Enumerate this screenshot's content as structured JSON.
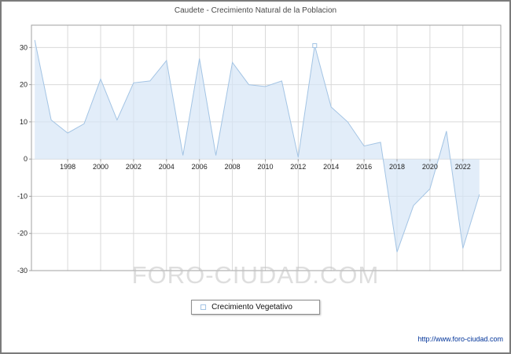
{
  "watermark": "FORO-CIUDAD.COM",
  "footer_url": "http://www.foro-ciudad.com",
  "chart_data": {
    "type": "area",
    "title": "Caudete - Crecimiento Natural de la Poblacion",
    "series_name": "Crecimiento Vegetativo",
    "xlabel": "",
    "ylabel": "",
    "grid": true,
    "legend_position": "bottom",
    "x": [
      1996,
      1997,
      1998,
      1999,
      2000,
      2001,
      2002,
      2003,
      2004,
      2005,
      2006,
      2007,
      2008,
      2009,
      2010,
      2011,
      2012,
      2013,
      2014,
      2015,
      2016,
      2017,
      2018,
      2019,
      2020,
      2021,
      2022,
      2023
    ],
    "values": [
      32,
      10.5,
      7,
      9.5,
      21.5,
      10.5,
      20.5,
      21,
      26.5,
      1,
      27,
      1,
      26,
      20,
      19.5,
      21,
      0.5,
      30.5,
      14,
      10,
      3.5,
      4.5,
      -25,
      -12.5,
      -8,
      7.5,
      -24,
      -9.5
    ],
    "xticks": [
      1998,
      2000,
      2002,
      2004,
      2006,
      2008,
      2010,
      2012,
      2014,
      2016,
      2018,
      2020,
      2022
    ],
    "yticks": [
      -30,
      -20,
      -10,
      0,
      10,
      20,
      30
    ],
    "ylim": [
      -30,
      36
    ],
    "x_range": [
      1995.8,
      2024.3
    ],
    "marker_x": 2013,
    "line_color": "#a3c4e4",
    "fill_color": "#d6e6f7",
    "grid_color": "#d9d9d9",
    "axis_color": "#a0a0a0",
    "tick_label_color": "#222222"
  }
}
